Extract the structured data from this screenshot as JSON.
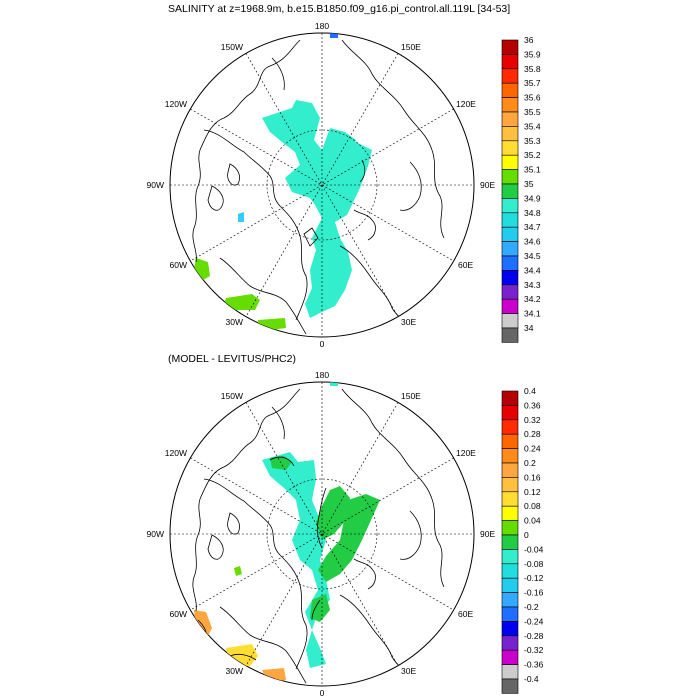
{
  "figure": {
    "title_top": "SALINITY at z=1968.9m, b.e15.B1850.f09_g16.pi_control.all.119L [34-53]",
    "title_bottom": "(MODEL - LEVITUS/PHC2)"
  },
  "panels": [
    {
      "id": "top",
      "variable": "salinity",
      "projection": "north polar stereographic",
      "longitude_labels": {
        "lon_180": "180",
        "lon_150E": "150E",
        "lon_120E": "120E",
        "lon_90E": "90E",
        "lon_60E": "60E",
        "lon_30E": "30E",
        "lon_0": "0",
        "lon_30W": "30W",
        "lon_60W": "60W",
        "lon_90W": "90W",
        "lon_120W": "120W",
        "lon_150W": "150W"
      },
      "colorbar": {
        "labels": [
          "36",
          "35.9",
          "35.8",
          "35.7",
          "35.6",
          "35.5",
          "35.4",
          "35.3",
          "35.2",
          "35.1",
          "35",
          "34.9",
          "34.8",
          "34.7",
          "34.6",
          "34.5",
          "34.4",
          "34.3",
          "34.2",
          "34.1",
          "34"
        ],
        "colors": [
          "#b40000",
          "#e60000",
          "#ff2a00",
          "#ff6600",
          "#ff8c1a",
          "#ffa640",
          "#ffc040",
          "#ffdd33",
          "#ffff00",
          "#66dd00",
          "#22cc44",
          "#33eecc",
          "#22dddd",
          "#22ccee",
          "#33aaff",
          "#1e6eff",
          "#0000ee",
          "#7722cc",
          "#cc00cc",
          "#cccccc",
          "#666666"
        ]
      }
    },
    {
      "id": "bottom",
      "variable": "salinity difference",
      "projection": "north polar stereographic",
      "longitude_labels": {
        "lon_180": "180",
        "lon_150E": "150E",
        "lon_120E": "120E",
        "lon_90E": "90E",
        "lon_60E": "60E",
        "lon_30E": "30E",
        "lon_0": "0",
        "lon_30W": "30W",
        "lon_60W": "60W",
        "lon_90W": "90W",
        "lon_120W": "120W",
        "lon_150W": "150W"
      },
      "colorbar": {
        "labels": [
          "0.4",
          "0.36",
          "0.32",
          "0.28",
          "0.24",
          "0.2",
          "0.16",
          "0.12",
          "0.08",
          "0.04",
          "0",
          "-0.04",
          "-0.08",
          "-0.12",
          "-0.16",
          "-0.2",
          "-0.24",
          "-0.28",
          "-0.32",
          "-0.36",
          "-0.4"
        ],
        "colors": [
          "#b40000",
          "#e60000",
          "#ff2a00",
          "#ff6600",
          "#ff8c1a",
          "#ffa640",
          "#ffc040",
          "#ffdd33",
          "#ffff00",
          "#66dd00",
          "#22cc44",
          "#33eecc",
          "#22dddd",
          "#22ccee",
          "#33aaff",
          "#1e6eff",
          "#0000ee",
          "#7722cc",
          "#cc00cc",
          "#cccccc",
          "#666666"
        ]
      }
    }
  ]
}
